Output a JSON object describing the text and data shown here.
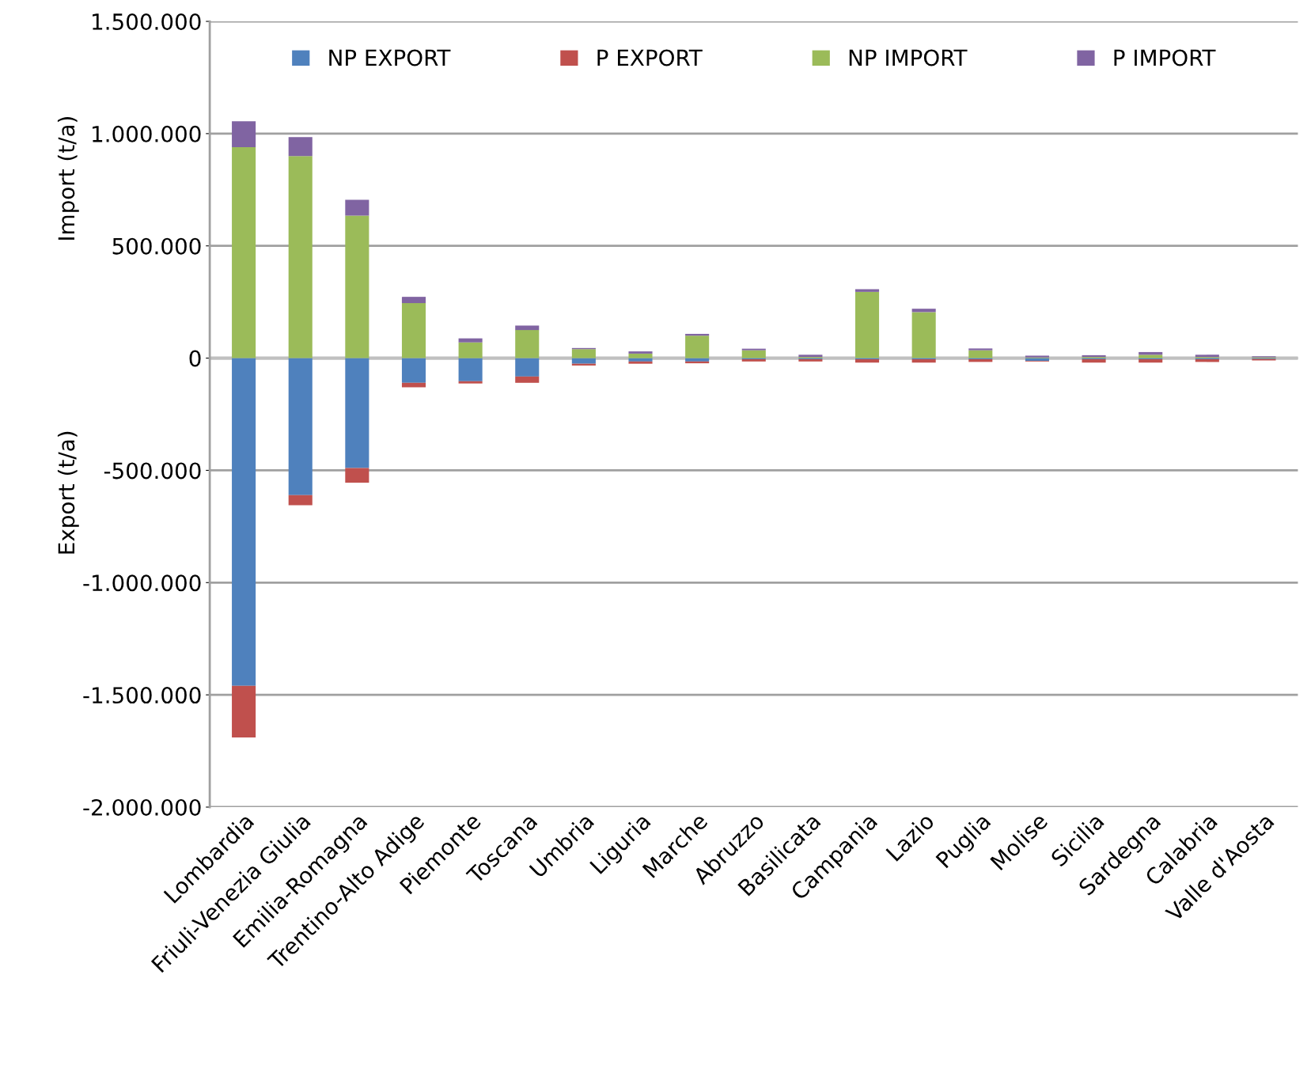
{
  "chart_data": {
    "type": "bar",
    "stacked": true,
    "ylabel": "Import (t/a)",
    "annotations": [
      "Export (t/a)"
    ],
    "categories": [
      "Lombardia",
      "Friuli-Venezia Giulia",
      "Emilia-Romagna",
      "Trentino-Alto Adige",
      "Piemonte",
      "Toscana",
      "Umbria",
      "Liguria",
      "Marche",
      "Abruzzo",
      "Basilicata",
      "Campania",
      "Lazio",
      "Puglia",
      "Molise",
      "Sicilia",
      "Sardegna",
      "Calabria",
      "Valle d'Aosta"
    ],
    "series": [
      {
        "name": "NP EXPORT",
        "color": "#4f81bd",
        "values": [
          -1460000,
          -610000,
          -490000,
          -110000,
          -103000,
          -82000,
          -25000,
          -15000,
          -15000,
          -5000,
          -5000,
          -5000,
          -5000,
          -5000,
          -12000,
          -5000,
          -5000,
          -5000,
          -4000
        ]
      },
      {
        "name": "P EXPORT",
        "color": "#c0504d",
        "values": [
          -230000,
          -45000,
          -65000,
          -20000,
          -10000,
          -28000,
          -8000,
          -10000,
          -8000,
          -10000,
          -10000,
          -15000,
          -15000,
          -12000,
          -3000,
          -15000,
          -15000,
          -12000,
          -6000
        ]
      },
      {
        "name": "NP IMPORT",
        "color": "#9bbb59",
        "values": [
          940000,
          900000,
          635000,
          245000,
          70000,
          125000,
          40000,
          20000,
          100000,
          35000,
          5000,
          295000,
          205000,
          35000,
          3000,
          5000,
          15000,
          5000,
          4000
        ]
      },
      {
        "name": "P IMPORT",
        "color": "#8064a2",
        "values": [
          115000,
          85000,
          70000,
          28000,
          18000,
          20000,
          5000,
          10000,
          8000,
          7000,
          10000,
          12000,
          15000,
          8000,
          8000,
          8000,
          12000,
          10000,
          4000
        ]
      }
    ],
    "ylim": [
      -2000000,
      1500000
    ],
    "yticks": [
      {
        "value": -2000000,
        "label": "-2.000.000"
      },
      {
        "value": -1500000,
        "label": "-1.500.000"
      },
      {
        "value": -1000000,
        "label": "-1.000.000"
      },
      {
        "value": -500000,
        "label": "-500.000"
      },
      0,
      {
        "value": 500000,
        "label": "500.000"
      },
      {
        "value": 1000000,
        "label": "1.000.000"
      },
      {
        "value": 1500000,
        "label": "1.500.000"
      }
    ],
    "grid": "y",
    "legend": "top"
  }
}
